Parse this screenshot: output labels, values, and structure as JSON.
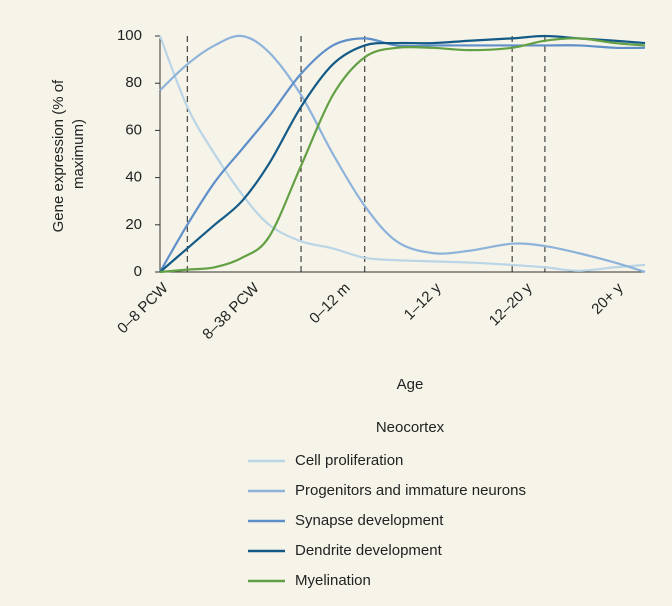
{
  "chart_data": {
    "type": "line",
    "ylabel": [
      "Gene expression (% of",
      "maximum)"
    ],
    "xlabel": "Age",
    "legend_title": "Neocortex",
    "categories": [
      "0–8 PCW",
      "8–38 PCW",
      "0–12 m",
      "1–12 y",
      "12–20 y",
      "20+ y"
    ],
    "xlim": [
      0,
      5.33
    ],
    "dividers": [
      0.3,
      1.55,
      2.25,
      3.87,
      4.23
    ],
    "x": [
      0,
      0.3,
      0.6,
      0.9,
      1.2,
      1.55,
      1.9,
      2.25,
      2.6,
      3.0,
      3.4,
      3.87,
      4.23,
      4.6,
      5.0,
      5.33
    ],
    "ylim": [
      0,
      100
    ],
    "yticks": [
      0,
      20,
      40,
      60,
      80,
      100
    ],
    "series": [
      {
        "name": "Cell proliferation",
        "color": "#b9d5e6",
        "values": [
          100,
          70,
          50,
          33,
          20,
          13,
          10,
          6,
          5,
          4.5,
          4,
          3,
          2,
          0.5,
          2,
          3
        ]
      },
      {
        "name": "Progenitors and immature neurons",
        "color": "#8eb3da",
        "values": [
          77,
          88,
          96,
          100,
          93,
          75,
          50,
          28,
          13,
          8,
          9,
          12,
          11,
          8,
          4,
          0
        ]
      },
      {
        "name": "Synapse development",
        "color": "#5f8fc9",
        "values": [
          0,
          20,
          38,
          52,
          66,
          84,
          96,
          99,
          96,
          96,
          96,
          96,
          96,
          96,
          95,
          95
        ]
      },
      {
        "name": "Dendrite development",
        "color": "#145a86",
        "values": [
          0,
          10,
          20,
          30,
          46,
          70,
          88,
          96,
          97,
          97,
          98,
          99,
          100,
          99,
          98,
          97
        ]
      },
      {
        "name": "Myelination",
        "color": "#62a043",
        "values": [
          0,
          1,
          2,
          6,
          15,
          45,
          75,
          91,
          95,
          95,
          94,
          95,
          98,
          99,
          97,
          96
        ]
      }
    ]
  }
}
